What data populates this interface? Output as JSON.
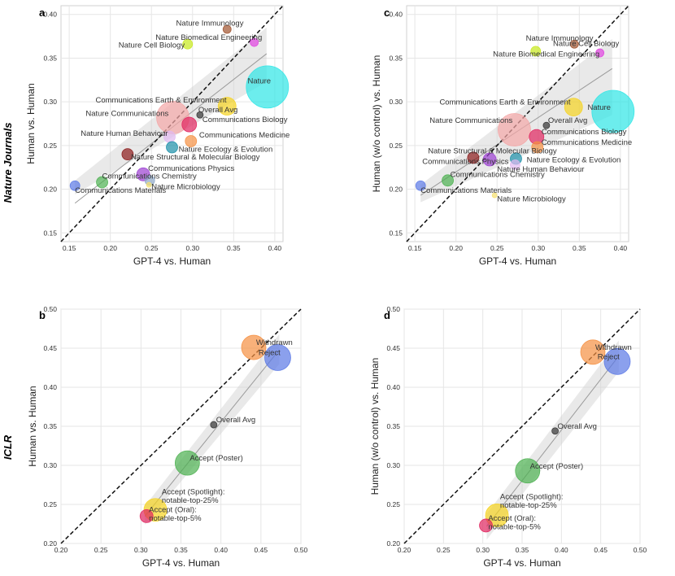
{
  "chart_data": [
    {
      "id": "a",
      "panel_letter": "a",
      "type": "scatter",
      "row_title": "Nature Journals",
      "xlabel": "GPT-4 vs. Human",
      "ylabel": "Human vs. Human",
      "xlim": [
        0.14,
        0.41
      ],
      "ylim": [
        0.14,
        0.41
      ],
      "xticks": [
        "0.15",
        "0.20",
        "0.25",
        "0.30",
        "0.35",
        "0.40"
      ],
      "yticks": [
        "0.15",
        "0.20",
        "0.25",
        "0.30",
        "0.35",
        "0.40"
      ],
      "band_lower": [
        0.157,
        0.194,
        0.39,
        0.323
      ],
      "band_upper": [
        0.157,
        0.21,
        0.39,
        0.385
      ],
      "fit": [
        0.157,
        0.184,
        0.39,
        0.355
      ],
      "points": [
        {
          "label": "Nature Immunology",
          "x": 0.342,
          "y": 0.383,
          "r": 5,
          "color": "#a0522d"
        },
        {
          "label": "Nature Biomedical Engineering",
          "x": 0.375,
          "y": 0.368,
          "r": 5,
          "color": "#e040e0"
        },
        {
          "label": "Nature Cell Biology",
          "x": 0.294,
          "y": 0.366,
          "r": 6,
          "color": "#c6e81a"
        },
        {
          "label": "Nature",
          "x": 0.391,
          "y": 0.317,
          "r": 26,
          "color": "#2ee6e6"
        },
        {
          "label": "Communications Earth & Environment",
          "x": 0.342,
          "y": 0.295,
          "r": 11,
          "color": "#f5d320"
        },
        {
          "label": "Nature Communications",
          "x": 0.276,
          "y": 0.282,
          "r": 20,
          "color": "#f4a6a6"
        },
        {
          "label": "Overall Avg",
          "x": 0.309,
          "y": 0.285,
          "r": 4,
          "color": "#333333"
        },
        {
          "label": "Communications Biology",
          "x": 0.296,
          "y": 0.274,
          "r": 9,
          "color": "#e0245e"
        },
        {
          "label": "Nature Human Behaviour",
          "x": 0.272,
          "y": 0.26,
          "r": 7,
          "color": "#e0b8f0"
        },
        {
          "label": "Communications Medicine",
          "x": 0.298,
          "y": 0.255,
          "r": 7,
          "color": "#f59042"
        },
        {
          "label": "Nature Ecology & Evolution",
          "x": 0.275,
          "y": 0.248,
          "r": 7,
          "color": "#1b8fa8"
        },
        {
          "label": "Nature Structural & Molecular Biology",
          "x": 0.221,
          "y": 0.24,
          "r": 7,
          "color": "#8b1a1a"
        },
        {
          "label": "Communications Physics",
          "x": 0.24,
          "y": 0.217,
          "r": 8,
          "color": "#9b3fd1"
        },
        {
          "label": "Communications Chemistry",
          "x": 0.248,
          "y": 0.21,
          "r": 6,
          "color": "#8fa8c8"
        },
        {
          "label": "Nature Microbiology",
          "x": 0.247,
          "y": 0.205,
          "r": 3,
          "color": "#f5e070"
        },
        {
          "label": "Communications Materials",
          "x": 0.157,
          "y": 0.204,
          "r": 6,
          "color": "#5a78e6"
        },
        {
          "label": "Communications Chemistry",
          "x": 0.19,
          "y": 0.208,
          "r": 7,
          "color": "#4cb050"
        }
      ],
      "labels": [
        {
          "text": "Nature Immunology",
          "x": 0.28,
          "y": 0.387,
          "point": 0
        },
        {
          "text": "Nature Biomedical Engineering",
          "x": 0.255,
          "y": 0.371,
          "point": 1
        },
        {
          "text": "Nature Cell Biology",
          "x": 0.21,
          "y": 0.362,
          "point": 2
        },
        {
          "text": "Nature",
          "x": 0.367,
          "y": 0.321,
          "point": 3
        },
        {
          "text": "Communications Earth & Environment",
          "x": 0.182,
          "y": 0.299,
          "point": 4
        },
        {
          "text": "Overall Avg",
          "x": 0.307,
          "y": 0.288,
          "point": 6
        },
        {
          "text": "Nature Communications",
          "x": 0.17,
          "y": 0.284,
          "point": 5
        },
        {
          "text": "Communications Biology",
          "x": 0.312,
          "y": 0.277,
          "point": 7
        },
        {
          "text": "Nature Human Behaviour",
          "x": 0.164,
          "y": 0.261,
          "point": 8
        },
        {
          "text": "Communications Medicine",
          "x": 0.308,
          "y": 0.259,
          "point": 9
        },
        {
          "text": "Nature Ecology & Evolution",
          "x": 0.283,
          "y": 0.243,
          "point": 10
        },
        {
          "text": "Nature Structural & Molecular Biology",
          "x": 0.225,
          "y": 0.234,
          "point": 11
        },
        {
          "text": "Communications Physics",
          "x": 0.246,
          "y": 0.221,
          "point": 12
        },
        {
          "text": "Communications Chemistry",
          "x": 0.19,
          "y": 0.212,
          "point": 16
        },
        {
          "text": "Nature Microbiology",
          "x": 0.25,
          "y": 0.2,
          "point": 14
        },
        {
          "text": "Communications Materials",
          "x": 0.157,
          "y": 0.196,
          "point": 15
        }
      ]
    },
    {
      "id": "c",
      "panel_letter": "c",
      "type": "scatter",
      "xlabel": "GPT-4 vs. Human",
      "ylabel": "Human (w/o control) vs. Human",
      "xlim": [
        0.14,
        0.41
      ],
      "ylim": [
        0.14,
        0.41
      ],
      "xticks": [
        "0.15",
        "0.20",
        "0.25",
        "0.30",
        "0.35",
        "0.40"
      ],
      "yticks": [
        "0.15",
        "0.20",
        "0.25",
        "0.30",
        "0.35",
        "0.40"
      ],
      "band_lower": [
        0.157,
        0.185,
        0.39,
        0.285
      ],
      "band_upper": [
        0.157,
        0.205,
        0.39,
        0.372
      ],
      "fit": [
        0.157,
        0.193,
        0.39,
        0.338
      ],
      "points": [
        {
          "label": "Nature Immunology",
          "x": 0.344,
          "y": 0.366,
          "r": 5,
          "color": "#a0522d"
        },
        {
          "label": "Nature Cell Biology",
          "x": 0.297,
          "y": 0.358,
          "r": 6,
          "color": "#c6e81a"
        },
        {
          "label": "Nature Biomedical Engineering",
          "x": 0.375,
          "y": 0.356,
          "r": 5,
          "color": "#e040e0"
        },
        {
          "label": "Nature",
          "x": 0.391,
          "y": 0.289,
          "r": 26,
          "color": "#2ee6e6"
        },
        {
          "label": "Communications Earth & Environment",
          "x": 0.343,
          "y": 0.294,
          "r": 11,
          "color": "#f5d320"
        },
        {
          "label": "Nature Communications",
          "x": 0.271,
          "y": 0.268,
          "r": 20,
          "color": "#f4a6a6"
        },
        {
          "label": "Overall Avg",
          "x": 0.31,
          "y": 0.273,
          "r": 4,
          "color": "#333333"
        },
        {
          "label": "Communications Biology",
          "x": 0.298,
          "y": 0.26,
          "r": 9,
          "color": "#e0245e"
        },
        {
          "label": "Communications Medicine",
          "x": 0.299,
          "y": 0.248,
          "r": 7,
          "color": "#f59042"
        },
        {
          "label": "Nature Structural & Molecular Biology",
          "x": 0.221,
          "y": 0.236,
          "r": 7,
          "color": "#8b1a1a"
        },
        {
          "label": "Communications Physics",
          "x": 0.241,
          "y": 0.234,
          "r": 8,
          "color": "#9b3fd1"
        },
        {
          "label": "Nature Ecology & Evolution",
          "x": 0.273,
          "y": 0.235,
          "r": 7,
          "color": "#1b8fa8"
        },
        {
          "label": "Nature Human Behaviour",
          "x": 0.272,
          "y": 0.228,
          "r": 6,
          "color": "#e0b8f0"
        },
        {
          "label": "Communications Chemistry",
          "x": 0.19,
          "y": 0.21,
          "r": 7,
          "color": "#4cb050"
        },
        {
          "label": "Communications Materials",
          "x": 0.157,
          "y": 0.204,
          "r": 6,
          "color": "#5a78e6"
        },
        {
          "label": "Nature Microbiology",
          "x": 0.247,
          "y": 0.193,
          "r": 3,
          "color": "#f5e070"
        }
      ],
      "labels": [
        {
          "text": "Nature Immunology",
          "x": 0.285,
          "y": 0.37,
          "point": 0
        },
        {
          "text": "Nature Cell Biology",
          "x": 0.318,
          "y": 0.364,
          "point": 1
        },
        {
          "text": "Nature Biomedical Engineering",
          "x": 0.245,
          "y": 0.352,
          "point": 2
        },
        {
          "text": "Nature",
          "x": 0.36,
          "y": 0.291,
          "point": 3
        },
        {
          "text": "Communications Earth & Environment",
          "x": 0.18,
          "y": 0.297,
          "point": 4
        },
        {
          "text": "Overall Avg",
          "x": 0.312,
          "y": 0.276,
          "point": 6
        },
        {
          "text": "Nature Communications",
          "x": 0.168,
          "y": 0.276,
          "point": 5
        },
        {
          "text": "Communications Biology",
          "x": 0.304,
          "y": 0.263,
          "point": 7
        },
        {
          "text": "Communications Medicine",
          "x": 0.304,
          "y": 0.251,
          "point": 8
        },
        {
          "text": "Nature Structural & Molecular Biology",
          "x": 0.166,
          "y": 0.241,
          "point": 9
        },
        {
          "text": "Communications Physics",
          "x": 0.159,
          "y": 0.229,
          "point": 10
        },
        {
          "text": "Nature Ecology & Evolution",
          "x": 0.286,
          "y": 0.231,
          "point": 11
        },
        {
          "text": "Nature Human Behaviour",
          "x": 0.25,
          "y": 0.22,
          "point": 12
        },
        {
          "text": "Communications Chemistry",
          "x": 0.193,
          "y": 0.214,
          "point": 13
        },
        {
          "text": "Communications Materials",
          "x": 0.157,
          "y": 0.196,
          "point": 14
        },
        {
          "text": "Nature Microbiology",
          "x": 0.25,
          "y": 0.186,
          "point": 15
        }
      ]
    },
    {
      "id": "b",
      "panel_letter": "b",
      "type": "scatter",
      "row_title": "ICLR",
      "xlabel": "GPT-4 vs. Human",
      "ylabel": "Human vs. Human",
      "xlim": [
        0.2,
        0.5
      ],
      "ylim": [
        0.2,
        0.5
      ],
      "xticks": [
        "0.20",
        "0.25",
        "0.30",
        "0.35",
        "0.40",
        "0.45",
        "0.50"
      ],
      "yticks": [
        "0.20",
        "0.25",
        "0.30",
        "0.35",
        "0.40",
        "0.45",
        "0.50"
      ],
      "band_lower": [
        0.305,
        0.224,
        0.473,
        0.43
      ],
      "band_upper": [
        0.305,
        0.248,
        0.473,
        0.468
      ],
      "fit": [
        0.305,
        0.235,
        0.473,
        0.448
      ],
      "points": [
        {
          "label": "Reject",
          "x": 0.471,
          "y": 0.438,
          "r": 16,
          "color": "#5a78e6"
        },
        {
          "label": "Withdrawn",
          "x": 0.441,
          "y": 0.451,
          "r": 15,
          "color": "#f59042"
        },
        {
          "label": "Overall Avg",
          "x": 0.391,
          "y": 0.352,
          "r": 4,
          "color": "#333333"
        },
        {
          "label": "Accept (Poster)",
          "x": 0.358,
          "y": 0.303,
          "r": 15,
          "color": "#4cb050"
        },
        {
          "label": "Accept (Spotlight): notable-top-25%",
          "x": 0.318,
          "y": 0.243,
          "r": 14,
          "color": "#f5d320"
        },
        {
          "label": "Accept (Oral): notable-top-5%",
          "x": 0.307,
          "y": 0.235,
          "r": 8,
          "color": "#e0245e"
        }
      ],
      "labels": [
        {
          "text": "Withdrawn",
          "x": 0.444,
          "y": 0.454,
          "point": 1
        },
        {
          "text": "Reject",
          "x": 0.447,
          "y": 0.441,
          "point": 0
        },
        {
          "text": "Overall Avg",
          "x": 0.394,
          "y": 0.355,
          "point": 2
        },
        {
          "text": "Accept (Poster)",
          "x": 0.361,
          "y": 0.306,
          "point": 3
        },
        {
          "text": "Accept (Spotlight):",
          "x": 0.326,
          "y": 0.263,
          "point": 4
        },
        {
          "text": "notable-top-25%",
          "x": 0.326,
          "y": 0.252,
          "point": 4
        },
        {
          "text": "Accept (Oral):",
          "x": 0.31,
          "y": 0.24,
          "point": 5
        },
        {
          "text": "notable-top-5%",
          "x": 0.31,
          "y": 0.229,
          "point": 5
        }
      ]
    },
    {
      "id": "d",
      "panel_letter": "d",
      "type": "scatter",
      "xlabel": "GPT-4 vs. Human",
      "ylabel": "Human (w/o control) vs. Human",
      "xlim": [
        0.2,
        0.5
      ],
      "ylim": [
        0.2,
        0.5
      ],
      "xticks": [
        "0.20",
        "0.25",
        "0.30",
        "0.35",
        "0.40",
        "0.45",
        "0.50"
      ],
      "yticks": [
        "0.20",
        "0.25",
        "0.30",
        "0.35",
        "0.40",
        "0.45",
        "0.50"
      ],
      "band_lower": [
        0.305,
        0.205,
        0.473,
        0.42
      ],
      "band_upper": [
        0.305,
        0.238,
        0.473,
        0.46
      ],
      "fit": [
        0.305,
        0.222,
        0.473,
        0.44
      ],
      "points": [
        {
          "label": "Reject",
          "x": 0.471,
          "y": 0.433,
          "r": 16,
          "color": "#5a78e6"
        },
        {
          "label": "Withdrawn",
          "x": 0.44,
          "y": 0.445,
          "r": 15,
          "color": "#f59042"
        },
        {
          "label": "Overall Avg",
          "x": 0.392,
          "y": 0.344,
          "r": 4,
          "color": "#333333"
        },
        {
          "label": "Accept (Poster)",
          "x": 0.357,
          "y": 0.293,
          "r": 15,
          "color": "#4cb050"
        },
        {
          "label": "Accept (Spotlight): notable-top-25%",
          "x": 0.318,
          "y": 0.236,
          "r": 14,
          "color": "#f5d320"
        },
        {
          "label": "Accept (Oral): notable-top-5%",
          "x": 0.304,
          "y": 0.223,
          "r": 8,
          "color": "#e0245e"
        }
      ],
      "labels": [
        {
          "text": "Withdrawn",
          "x": 0.443,
          "y": 0.448,
          "point": 1
        },
        {
          "text": "Reject",
          "x": 0.446,
          "y": 0.436,
          "point": 0
        },
        {
          "text": "Overall Avg",
          "x": 0.395,
          "y": 0.347,
          "point": 2
        },
        {
          "text": "Accept (Poster)",
          "x": 0.36,
          "y": 0.296,
          "point": 3
        },
        {
          "text": "Accept (Spotlight):",
          "x": 0.322,
          "y": 0.257,
          "point": 4
        },
        {
          "text": "notable-top-25%",
          "x": 0.322,
          "y": 0.246,
          "point": 4
        },
        {
          "text": "Accept (Oral):",
          "x": 0.307,
          "y": 0.229,
          "point": 5
        },
        {
          "text": "notable-top-5%",
          "x": 0.307,
          "y": 0.218,
          "point": 5
        }
      ]
    }
  ]
}
